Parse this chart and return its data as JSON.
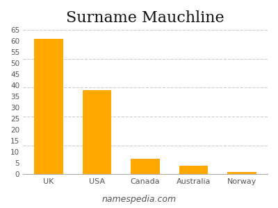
{
  "title": "Surname Mauchline",
  "categories": [
    "UK",
    "USA",
    "Canada",
    "Australia",
    "Norway"
  ],
  "values": [
    61,
    38,
    7,
    4,
    1
  ],
  "bar_color": "#FFA800",
  "ylim": [
    0,
    65
  ],
  "yticks": [
    0,
    5,
    10,
    15,
    20,
    25,
    30,
    35,
    40,
    45,
    50,
    55,
    60,
    65
  ],
  "ytick_labels": [
    "0",
    "5",
    "10",
    "15",
    "20",
    "25",
    "30",
    "35",
    "40",
    "45",
    "50",
    "55",
    "60",
    "65"
  ],
  "grid_ticks": [
    13,
    26,
    39,
    52,
    65
  ],
  "grid_color": "#cccccc",
  "background_color": "#ffffff",
  "title_fontsize": 16,
  "tick_fontsize": 7.5,
  "watermark": "namespedia.com",
  "watermark_fontsize": 9
}
